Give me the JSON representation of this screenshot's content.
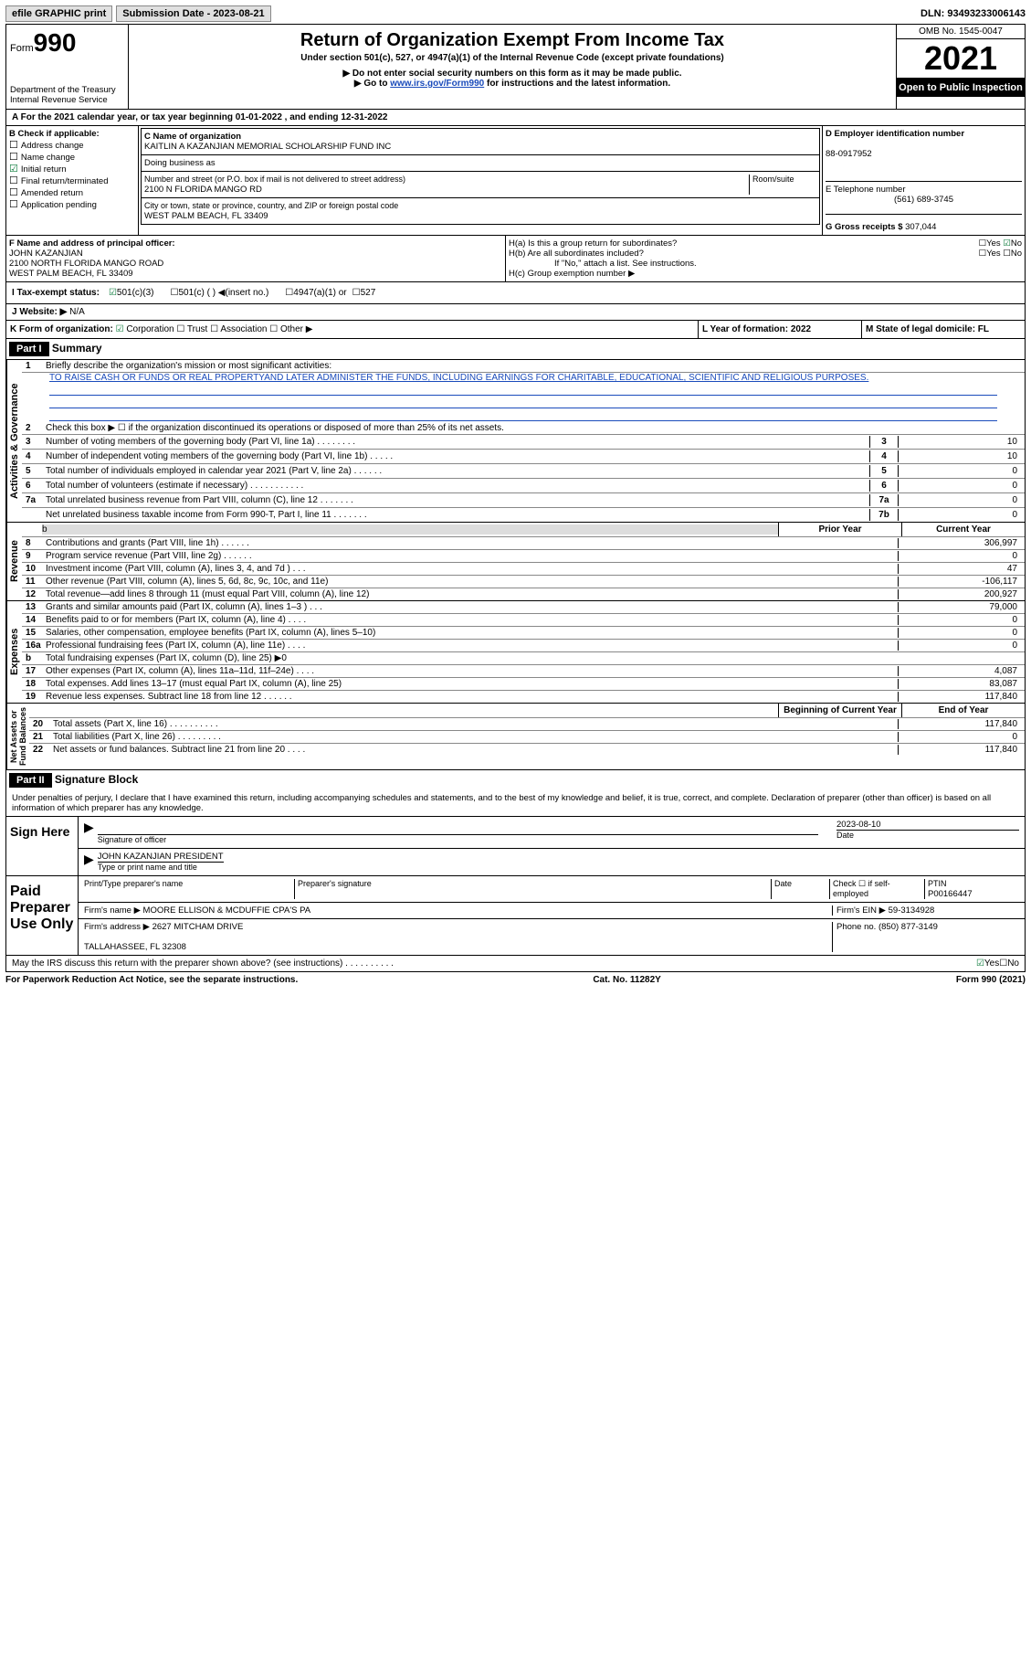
{
  "topbar": {
    "efile": "efile GRAPHIC print",
    "submission_label": "Submission Date - 2023-08-21",
    "dln": "DLN: 93493233006143"
  },
  "header": {
    "form_word": "Form",
    "form_num": "990",
    "dept": "Department of the Treasury\nInternal Revenue Service",
    "title": "Return of Organization Exempt From Income Tax",
    "subtitle": "Under section 501(c), 527, or 4947(a)(1) of the Internal Revenue Code (except private foundations)",
    "note1": "▶ Do not enter social security numbers on this form as it may be made public.",
    "note2_pre": "▶ Go to ",
    "note2_link": "www.irs.gov/Form990",
    "note2_post": " for instructions and the latest information.",
    "omb": "OMB No. 1545-0047",
    "year": "2021",
    "open": "Open to Public Inspection"
  },
  "periodA": "A For the 2021 calendar year, or tax year beginning 01-01-2022   , and ending 12-31-2022",
  "colB": {
    "label": "B Check if applicable:",
    "items": [
      "Address change",
      "Name change",
      "Initial return",
      "Final return/terminated",
      "Amended return",
      "Application pending"
    ],
    "checked_idx": 2
  },
  "colC": {
    "name_label": "C Name of organization",
    "name": "KAITLIN A KAZANJIAN MEMORIAL SCHOLARSHIP FUND INC",
    "dba_label": "Doing business as",
    "dba": "",
    "addr_label": "Number and street (or P.O. box if mail is not delivered to street address)",
    "room_label": "Room/suite",
    "addr": "2100 N FLORIDA MANGO RD",
    "city_label": "City or town, state or province, country, and ZIP or foreign postal code",
    "city": "WEST PALM BEACH, FL  33409"
  },
  "colD": {
    "label": "D Employer identification number",
    "ein": "88-0917952"
  },
  "colE": {
    "label": "E Telephone number",
    "phone": "(561) 689-3745"
  },
  "colG": {
    "label": "G Gross receipts $",
    "amount": "307,044"
  },
  "colF": {
    "label": "F  Name and address of principal officer:",
    "name": "JOHN KAZANJIAN",
    "addr": "2100 NORTH FLORIDA MANGO ROAD\nWEST PALM BEACH, FL  33409"
  },
  "colH": {
    "a": "H(a)  Is this a group return for subordinates?",
    "a_yes": "Yes",
    "a_no": "No",
    "b": "H(b)  Are all subordinates included?",
    "b_yes": "Yes",
    "b_no": "No",
    "b_note": "If \"No,\" attach a list. See instructions.",
    "c": "H(c)  Group exemption number ▶"
  },
  "rowI": {
    "label": "I   Tax-exempt status:",
    "opt1": "501(c)(3)",
    "opt2": "501(c) (  ) ◀(insert no.)",
    "opt3": "4947(a)(1) or",
    "opt4": "527"
  },
  "rowJ": {
    "label": "J   Website: ▶",
    "val": "N/A"
  },
  "rowK": {
    "label": "K Form of organization:",
    "c": "Corporation",
    "t": "Trust",
    "a": "Association",
    "o": "Other ▶"
  },
  "rowL": {
    "label": "L Year of formation: 2022"
  },
  "rowM": {
    "label": "M State of legal domicile: FL"
  },
  "part1": {
    "hdr": "Part I",
    "title": "Summary"
  },
  "summary": {
    "l1": "Briefly describe the organization's mission or most significant activities:",
    "mission": "TO RAISE CASH OR FUNDS OR REAL PROPERTYAND LATER ADMINISTER THE FUNDS, INCLUDING EARNINGS FOR CHARITABLE, EDUCATIONAL, SCIENTIFIC AND RELIGIOUS PURPOSES.",
    "l2": "Check this box ▶ ☐  if the organization discontinued its operations or disposed of more than 25% of its net assets.",
    "rows": [
      {
        "n": "3",
        "t": "Number of voting members of the governing body (Part VI, line 1a)   .    .    .    .    .    .    .    .",
        "box": "3",
        "v": "10"
      },
      {
        "n": "4",
        "t": "Number of independent voting members of the governing body (Part VI, line 1b)    .    .    .    .    .",
        "box": "4",
        "v": "10"
      },
      {
        "n": "5",
        "t": "Total number of individuals employed in calendar year 2021 (Part V, line 2a)    .    .    .    .    .    .",
        "box": "5",
        "v": "0"
      },
      {
        "n": "6",
        "t": "Total number of volunteers (estimate if necessary)     .    .    .    .    .    .    .    .    .    .    .",
        "box": "6",
        "v": "0"
      },
      {
        "n": "7a",
        "t": "Total unrelated business revenue from Part VIII, column (C), line 12     .    .    .    .    .    .    .",
        "box": "7a",
        "v": "0"
      },
      {
        "n": "",
        "t": "Net unrelated business taxable income from Form 990-T, Part I, line 11    .    .    .    .    .    .    .",
        "box": "7b",
        "v": "0"
      }
    ]
  },
  "two_col_hdr": {
    "prior": "Prior Year",
    "current": "Current Year",
    "beg": "Beginning of Current Year",
    "end": "End of Year"
  },
  "revenue": [
    {
      "n": "8",
      "t": "Contributions and grants (Part VIII, line 1h)    .    .    .    .    .    .",
      "p": "",
      "c": "306,997"
    },
    {
      "n": "9",
      "t": "Program service revenue (Part VIII, line 2g)   .    .    .    .    .    .",
      "p": "",
      "c": "0"
    },
    {
      "n": "10",
      "t": "Investment income (Part VIII, column (A), lines 3, 4, and 7d )    .    .    .",
      "p": "",
      "c": "47"
    },
    {
      "n": "11",
      "t": "Other revenue (Part VIII, column (A), lines 5, 6d, 8c, 9c, 10c, and 11e)",
      "p": "",
      "c": "-106,117"
    },
    {
      "n": "12",
      "t": "Total revenue—add lines 8 through 11 (must equal Part VIII, column (A), line 12)",
      "p": "",
      "c": "200,927"
    }
  ],
  "expenses": [
    {
      "n": "13",
      "t": "Grants and similar amounts paid (Part IX, column (A), lines 1–3 )   .    .    .",
      "p": "",
      "c": "79,000"
    },
    {
      "n": "14",
      "t": "Benefits paid to or for members (Part IX, column (A), line 4)   .    .    .    .",
      "p": "",
      "c": "0"
    },
    {
      "n": "15",
      "t": "Salaries, other compensation, employee benefits (Part IX, column (A), lines 5–10)",
      "p": "",
      "c": "0"
    },
    {
      "n": "16a",
      "t": "Professional fundraising fees (Part IX, column (A), line 11e)    .    .    .    .",
      "p": "",
      "c": "0"
    },
    {
      "n": "b",
      "t": "Total fundraising expenses (Part IX, column (D), line 25) ▶0",
      "p": "SHADE",
      "c": "SHADE"
    },
    {
      "n": "17",
      "t": "Other expenses (Part IX, column (A), lines 11a–11d, 11f–24e)   .    .    .    .",
      "p": "",
      "c": "4,087"
    },
    {
      "n": "18",
      "t": "Total expenses. Add lines 13–17 (must equal Part IX, column (A), line 25)",
      "p": "",
      "c": "83,087"
    },
    {
      "n": "19",
      "t": "Revenue less expenses. Subtract line 18 from line 12   .    .    .    .    .    .",
      "p": "",
      "c": "117,840"
    }
  ],
  "netassets": [
    {
      "n": "20",
      "t": "Total assets (Part X, line 16)   .    .    .    .    .    .    .    .    .    .",
      "p": "",
      "c": "117,840"
    },
    {
      "n": "21",
      "t": "Total liabilities (Part X, line 26)   .    .    .    .    .    .    .    .    .",
      "p": "",
      "c": "0"
    },
    {
      "n": "22",
      "t": "Net assets or fund balances. Subtract line 21 from line 20    .    .    .    .",
      "p": "",
      "c": "117,840"
    }
  ],
  "sections": {
    "activities": "Activities & Governance",
    "revenue": "Revenue",
    "expenses": "Expenses",
    "netassets": "Net Assets or\nFund Balances"
  },
  "part2": {
    "hdr": "Part II",
    "title": "Signature Block",
    "decl": "Under penalties of perjury, I declare that I have examined this return, including accompanying schedules and statements, and to the best of my knowledge and belief, it is true, correct, and complete. Declaration of preparer (other than officer) is based on all information of which preparer has any knowledge."
  },
  "sign": {
    "here": "Sign Here",
    "sig_officer": "Signature of officer",
    "date": "2023-08-10",
    "date_label": "Date",
    "name": "JOHN KAZANJIAN  PRESIDENT",
    "name_label": "Type or print name and title"
  },
  "paid": {
    "label": "Paid Preparer Use Only",
    "h1": "Print/Type preparer's name",
    "h2": "Preparer's signature",
    "h3": "Date",
    "h4": "Check ☐  if self-employed",
    "h5": "PTIN",
    "ptin": "P00166447",
    "firm_name_label": "Firm's name     ▶",
    "firm_name": "MOORE ELLISON & MCDUFFIE CPA'S PA",
    "firm_ein_label": "Firm's EIN ▶",
    "firm_ein": "59-3134928",
    "firm_addr_label": "Firm's address ▶",
    "firm_addr": "2627 MITCHAM DRIVE\n\nTALLAHASSEE, FL  32308",
    "phone_label": "Phone no.",
    "phone": "(850) 877-3149"
  },
  "may_irs": "May the IRS discuss this return with the preparer shown above? (see instructions)    .    .    .    .    .    .    .    .    .    .",
  "yes": "Yes",
  "no": "No",
  "footer": {
    "left": "For Paperwork Reduction Act Notice, see the separate instructions.",
    "mid": "Cat. No. 11282Y",
    "right": "Form 990 (2021)"
  }
}
